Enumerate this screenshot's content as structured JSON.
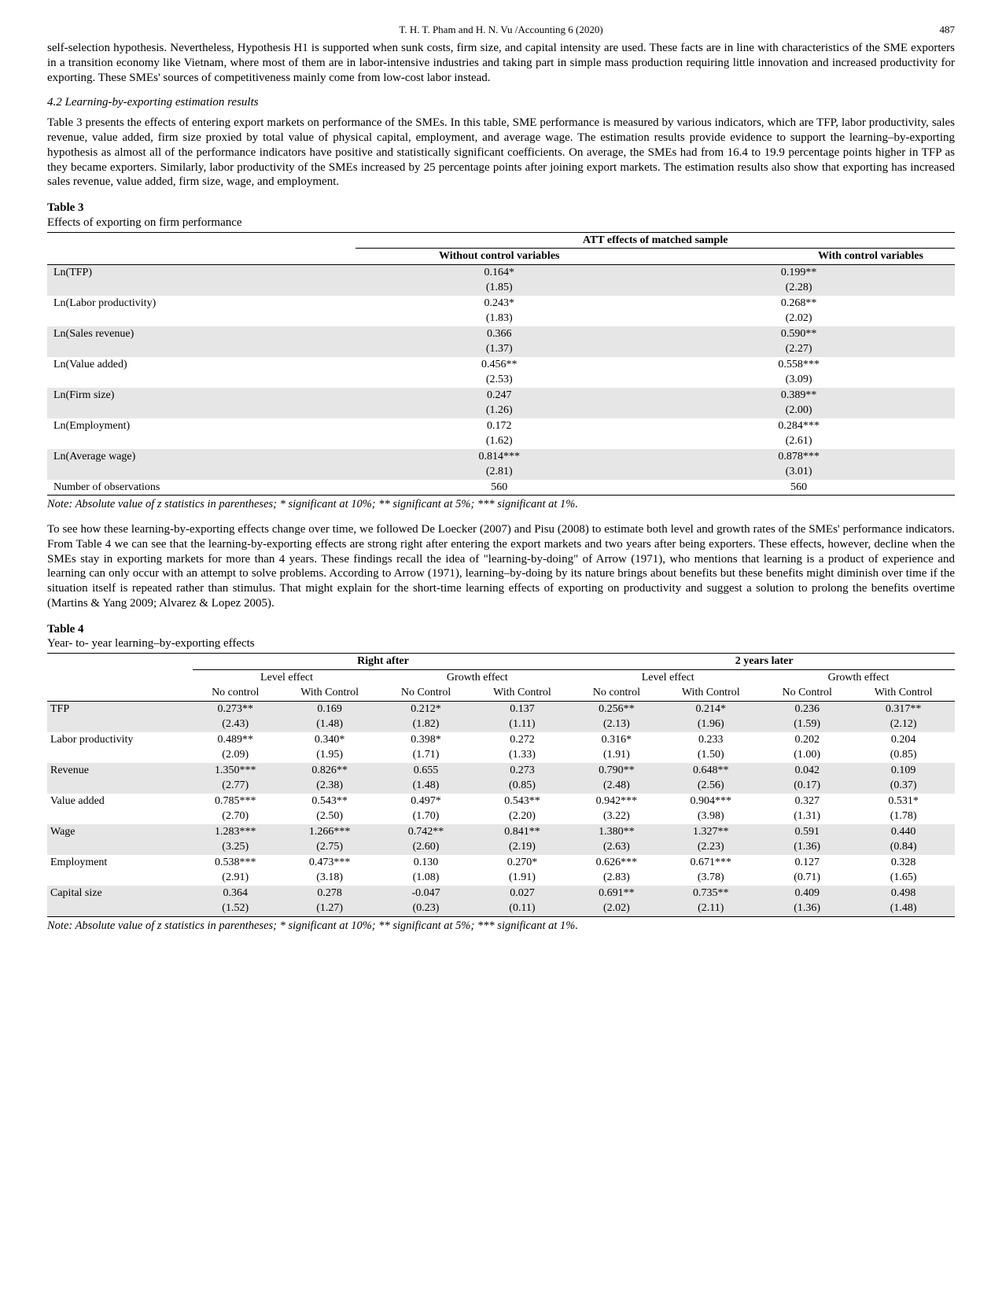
{
  "header": {
    "running_head": "T. H. T. Pham and H. N. Vu /Accounting 6 (2020)",
    "page_number": "487"
  },
  "para_top": "self-selection hypothesis. Nevertheless, Hypothesis H1 is supported when sunk costs, firm size, and capital intensity are used. These facts are in line with characteristics of the SME exporters in a transition economy like Vietnam, where most of them are in labor-intensive industries and taking part in simple mass production requiring little innovation and increased productivity for exporting. These SMEs' sources of competitiveness mainly come from low-cost labor instead.",
  "section42_heading": "4.2 Learning-by-exporting estimation results",
  "para_sec42": "Table 3 presents the effects of entering export markets on performance of the SMEs. In this table, SME performance is measured by various indicators, which are TFP, labor productivity, sales revenue, value added, firm size proxied by total value of physical capital, employment, and average wage. The estimation results provide evidence to support the learning–by-exporting hypothesis as almost all of the performance indicators have positive and statistically significant coefficients. On average, the SMEs had from 16.4 to 19.9 percentage points higher in TFP as they became exporters. Similarly, labor productivity of the SMEs increased by 25 percentage points after joining export markets. The estimation results also show that exporting has increased sales revenue, value added, firm size, wage, and employment.",
  "table3": {
    "label": "Table 3",
    "title": "Effects of exporting on firm performance",
    "super_header": "ATT effects of matched sample",
    "col_headers": [
      "Without control variables",
      "With control variables"
    ],
    "rows": [
      {
        "label": "Ln(TFP)",
        "v1": "0.164*",
        "t1": "(1.85)",
        "v2": "0.199**",
        "t2": "(2.28)",
        "shade": true
      },
      {
        "label": "Ln(Labor productivity)",
        "v1": "0.243*",
        "t1": "(1.83)",
        "v2": "0.268**",
        "t2": "(2.02)",
        "shade": false
      },
      {
        "label": "Ln(Sales revenue)",
        "v1": "0.366",
        "t1": "(1.37)",
        "v2": "0.590**",
        "t2": "(2.27)",
        "shade": true
      },
      {
        "label": "Ln(Value added)",
        "v1": "0.456**",
        "t1": "(2.53)",
        "v2": "0.558***",
        "t2": "(3.09)",
        "shade": false
      },
      {
        "label": "Ln(Firm size)",
        "v1": "0.247",
        "t1": "(1.26)",
        "v2": "0.389**",
        "t2": "(2.00)",
        "shade": true
      },
      {
        "label": "Ln(Employment)",
        "v1": "0.172",
        "t1": "(1.62)",
        "v2": "0.284***",
        "t2": "(2.61)",
        "shade": false
      },
      {
        "label": "Ln(Average wage)",
        "v1": "0.814***",
        "t1": "(2.81)",
        "v2": "0.878***",
        "t2": "(3.01)",
        "shade": true
      }
    ],
    "obs_label": "Number of observations",
    "obs_v1": "560",
    "obs_v2": "560",
    "note": "Note: Absolute value of z statistics in parentheses; * significant at 10%; ** significant at 5%; *** significant at 1%."
  },
  "para_after_t3": "To see how these learning-by-exporting effects change over time, we followed De Loecker (2007) and Pisu (2008) to estimate both level and growth rates of the SMEs' performance indicators. From Table 4 we can see that the learning-by-exporting effects are strong right after entering the export markets and two years after being exporters. These effects, however, decline when the SMEs stay in exporting markets for more than 4 years. These findings recall the idea of \"learning-by-doing\" of Arrow (1971), who mentions that learning is a product of experience and learning can only occur with an attempt to solve problems. According to Arrow (1971), learning–by-doing by its nature brings about benefits but these benefits might diminish over time if the situation itself is repeated rather than stimulus. That might explain for the short-time learning effects of exporting on productivity and suggest a solution to prolong the benefits overtime (Martins & Yang 2009; Alvarez & Lopez 2005).",
  "table4": {
    "label": "Table 4",
    "title": "Year- to- year learning–by-exporting effects",
    "super_headers": [
      "Right after",
      "2 years later"
    ],
    "mid_headers": [
      "Level effect",
      "Growth effect",
      "Level effect",
      "Growth effect"
    ],
    "sub_headers": [
      "No control",
      "With Control",
      "No Control",
      "With Control",
      "No control",
      "With Control",
      "No Control",
      "With Control"
    ],
    "rows": [
      {
        "label": "TFP",
        "shade": true,
        "v": [
          "0.273**",
          "0.169",
          "0.212*",
          "0.137",
          "0.256**",
          "0.214*",
          "0.236",
          "0.317**"
        ],
        "t": [
          "(2.43)",
          "(1.48)",
          "(1.82)",
          "(1.11)",
          "(2.13)",
          "(1.96)",
          "(1.59)",
          "(2.12)"
        ]
      },
      {
        "label": "Labor productivity",
        "shade": false,
        "v": [
          "0.489**",
          "0.340*",
          "0.398*",
          "0.272",
          "0.316*",
          "0.233",
          "0.202",
          "0.204"
        ],
        "t": [
          "(2.09)",
          "(1.95)",
          "(1.71)",
          "(1.33)",
          "(1.91)",
          "(1.50)",
          "(1.00)",
          "(0.85)"
        ]
      },
      {
        "label": "Revenue",
        "shade": true,
        "v": [
          "1.350***",
          "0.826**",
          "0.655",
          "0.273",
          "0.790**",
          "0.648**",
          "0.042",
          "0.109"
        ],
        "t": [
          "(2.77)",
          "(2.38)",
          "(1.48)",
          "(0.85)",
          "(2.48)",
          "(2.56)",
          "(0.17)",
          "(0.37)"
        ]
      },
      {
        "label": "Value added",
        "shade": false,
        "v": [
          "0.785***",
          "0.543**",
          "0.497*",
          "0.543**",
          "0.942***",
          "0.904***",
          "0.327",
          "0.531*"
        ],
        "t": [
          "(2.70)",
          "(2.50)",
          "(1.70)",
          "(2.20)",
          "(3.22)",
          "(3.98)",
          "(1.31)",
          "(1.78)"
        ]
      },
      {
        "label": "Wage",
        "shade": true,
        "v": [
          "1.283***",
          "1.266***",
          "0.742**",
          "0.841**",
          "1.380**",
          "1.327**",
          "0.591",
          "0.440"
        ],
        "t": [
          "(3.25)",
          "(2.75)",
          "(2.60)",
          "(2.19)",
          "(2.63)",
          "(2.23)",
          "(1.36)",
          "(0.84)"
        ]
      },
      {
        "label": "Employment",
        "shade": false,
        "v": [
          "0.538***",
          "0.473***",
          "0.130",
          "0.270*",
          "0.626***",
          "0.671***",
          "0.127",
          "0.328"
        ],
        "t": [
          "(2.91)",
          "(3.18)",
          "(1.08)",
          "(1.91)",
          "(2.83)",
          "(3.78)",
          "(0.71)",
          "(1.65)"
        ]
      },
      {
        "label": "Capital size",
        "shade": true,
        "v": [
          "0.364",
          "0.278",
          "-0.047",
          "0.027",
          "0.691**",
          "0.735**",
          "0.409",
          "0.498"
        ],
        "t": [
          "(1.52)",
          "(1.27)",
          "(0.23)",
          "(0.11)",
          "(2.02)",
          "(2.11)",
          "(1.36)",
          "(1.48)"
        ]
      }
    ],
    "note": "Note: Absolute value of z statistics in parentheses; * significant at 10%; ** significant at 5%; *** significant at 1%."
  }
}
